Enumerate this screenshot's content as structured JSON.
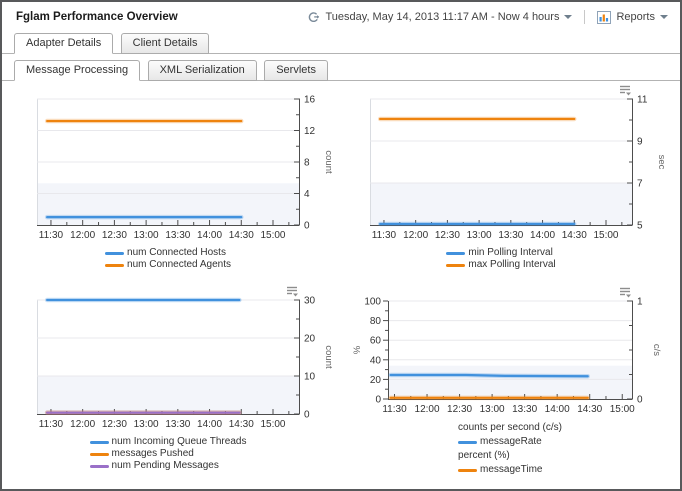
{
  "header": {
    "title": "Fglam Performance Overview",
    "time_range": "Tuesday, May 14, 2013 11:17 AM - Now 4 hours",
    "reports_label": "Reports"
  },
  "tabs": {
    "level1": [
      {
        "label": "Adapter Details",
        "active": true
      },
      {
        "label": "Client Details",
        "active": false
      }
    ],
    "level2": [
      {
        "label": "Message Processing",
        "active": true
      },
      {
        "label": "XML Serialization",
        "active": false
      },
      {
        "label": "Servlets",
        "active": false
      }
    ]
  },
  "colors": {
    "series_blue": "#4191dd",
    "series_orange": "#ee830e",
    "series_purple": "#9a70c8",
    "band": "#f3f5fa",
    "grid": "#e8e8ec",
    "axis": "#4d4d4d",
    "tick_text": "#333333",
    "unit_text": "#666666",
    "plot_border": "#d9dce1",
    "icon_gray": "#8d8d8d"
  },
  "chart_data": [
    {
      "id": "connected-hosts-agents",
      "type": "line",
      "x_domain": [
        11.28,
        15.41
      ],
      "x_ticks": [
        {
          "h": 11.5,
          "label": "11:30"
        },
        {
          "h": 12.0,
          "label": "12:00"
        },
        {
          "h": 12.5,
          "label": "12:30"
        },
        {
          "h": 13.0,
          "label": "13:00"
        },
        {
          "h": 13.5,
          "label": "13:30"
        },
        {
          "h": 14.0,
          "label": "14:00"
        },
        {
          "h": 14.5,
          "label": "14:30"
        },
        {
          "h": 15.0,
          "label": "15:00"
        }
      ],
      "axes": {
        "right": {
          "unit": "count",
          "min": 0,
          "max": 16,
          "major": [
            0,
            4,
            8,
            12,
            16
          ],
          "minor": [
            2,
            6,
            10,
            14
          ]
        }
      },
      "band": {
        "axis": "right",
        "from": 0,
        "to": 5.3
      },
      "series": [
        {
          "name": "num Connected Hosts",
          "color": "blue",
          "axis": "right",
          "points": [
            [
              11.44,
              1
            ],
            [
              14.5,
              1
            ]
          ]
        },
        {
          "name": "num Connected Agents",
          "color": "orange",
          "axis": "right",
          "points": [
            [
              11.44,
              13.2
            ],
            [
              14.5,
              13.2
            ]
          ]
        }
      ],
      "legend": [
        {
          "swatch": "blue",
          "label": "num Connected Hosts"
        },
        {
          "swatch": "orange",
          "label": "num Connected Agents"
        }
      ],
      "menu_icon": false
    },
    {
      "id": "polling-interval",
      "type": "line",
      "x_domain": [
        11.28,
        15.41
      ],
      "x_ticks": [
        {
          "h": 11.5,
          "label": "11:30"
        },
        {
          "h": 12.0,
          "label": "12:00"
        },
        {
          "h": 12.5,
          "label": "12:30"
        },
        {
          "h": 13.0,
          "label": "13:00"
        },
        {
          "h": 13.5,
          "label": "13:30"
        },
        {
          "h": 14.0,
          "label": "14:00"
        },
        {
          "h": 14.5,
          "label": "14:30"
        },
        {
          "h": 15.0,
          "label": "15:00"
        }
      ],
      "axes": {
        "right": {
          "unit": "sec",
          "min": 5,
          "max": 11,
          "major": [
            5,
            7,
            9,
            11
          ],
          "minor": [
            6,
            8,
            10
          ]
        }
      },
      "band": {
        "axis": "right",
        "from": 5,
        "to": 7
      },
      "series": [
        {
          "name": "min Polling Interval",
          "color": "blue",
          "axis": "right",
          "points": [
            [
              11.44,
              5.05
            ],
            [
              14.5,
              5.05
            ]
          ]
        },
        {
          "name": "max Polling Interval",
          "color": "orange",
          "axis": "right",
          "points": [
            [
              11.44,
              10.05
            ],
            [
              14.5,
              10.05
            ]
          ]
        }
      ],
      "legend": [
        {
          "swatch": "blue",
          "label": "min Polling Interval"
        },
        {
          "swatch": "orange",
          "label": "max Polling Interval"
        }
      ],
      "menu_icon": true
    },
    {
      "id": "queue-messages",
      "type": "line",
      "x_domain": [
        11.28,
        15.41
      ],
      "x_ticks": [
        {
          "h": 11.5,
          "label": "11:30"
        },
        {
          "h": 12.0,
          "label": "12:00"
        },
        {
          "h": 12.5,
          "label": "12:30"
        },
        {
          "h": 13.0,
          "label": "13:00"
        },
        {
          "h": 13.5,
          "label": "13:30"
        },
        {
          "h": 14.0,
          "label": "14:00"
        },
        {
          "h": 14.5,
          "label": "14:30"
        },
        {
          "h": 15.0,
          "label": "15:00"
        }
      ],
      "axes": {
        "right": {
          "unit": "count",
          "min": 0,
          "max": 30,
          "major": [
            0,
            10,
            20,
            30
          ],
          "minor": [
            5,
            15,
            25
          ]
        }
      },
      "band": {
        "axis": "right",
        "from": 0,
        "to": 10
      },
      "series": [
        {
          "name": "num Incoming Queue Threads",
          "color": "blue",
          "axis": "right",
          "points": [
            [
              11.44,
              30
            ],
            [
              14.47,
              30
            ]
          ]
        },
        {
          "name": "messages Pushed",
          "color": "orange",
          "axis": "right",
          "points": [
            [
              11.44,
              0.35
            ],
            [
              14.47,
              0.35
            ]
          ]
        },
        {
          "name": "num Pending Messages",
          "color": "purple",
          "axis": "right",
          "points": [
            [
              11.44,
              0.35
            ],
            [
              14.47,
              0.35
            ]
          ]
        }
      ],
      "legend": [
        {
          "swatch": "blue",
          "label": "num Incoming Queue Threads"
        },
        {
          "swatch": "orange",
          "label": "messages Pushed"
        },
        {
          "swatch": "purple",
          "label": "num Pending Messages"
        }
      ],
      "menu_icon": true
    },
    {
      "id": "message-rate-time",
      "type": "line",
      "x_domain": [
        11.4,
        15.15
      ],
      "x_ticks": [
        {
          "h": 11.5,
          "label": "11:30"
        },
        {
          "h": 12.0,
          "label": "12:00"
        },
        {
          "h": 12.5,
          "label": "12:30"
        },
        {
          "h": 13.0,
          "label": "13:00"
        },
        {
          "h": 13.5,
          "label": "13:30"
        },
        {
          "h": 14.0,
          "label": "14:00"
        },
        {
          "h": 14.5,
          "label": "14:30"
        },
        {
          "h": 15.0,
          "label": "15:00"
        }
      ],
      "axes": {
        "left": {
          "unit": "%",
          "min": 0,
          "max": 100,
          "major": [
            0,
            20,
            40,
            60,
            80,
            100
          ],
          "minor": [
            10,
            30,
            50,
            70,
            90
          ]
        },
        "right": {
          "unit": "c/s",
          "min": 0,
          "max": 1,
          "major": [
            0,
            1
          ],
          "minor": [
            0.25,
            0.5,
            0.75
          ]
        }
      },
      "band": {
        "axis": "left",
        "from": 0,
        "to": 34
      },
      "series": [
        {
          "name": "messageRate",
          "color": "blue",
          "axis": "right",
          "points": [
            [
              11.44,
              0.245
            ],
            [
              12.6,
              0.245
            ],
            [
              13.2,
              0.236
            ],
            [
              14.47,
              0.232
            ]
          ]
        },
        {
          "name": "messageTime",
          "color": "orange",
          "axis": "left",
          "points": [
            [
              11.44,
              1.2
            ],
            [
              14.47,
              1.2
            ]
          ]
        }
      ],
      "legend": [
        {
          "label": "counts per second (c/s)"
        },
        {
          "swatch": "blue",
          "label": "messageRate"
        },
        {
          "label": "percent (%)"
        },
        {
          "swatch": "orange",
          "label": "messageTime"
        }
      ],
      "menu_icon": true
    }
  ]
}
